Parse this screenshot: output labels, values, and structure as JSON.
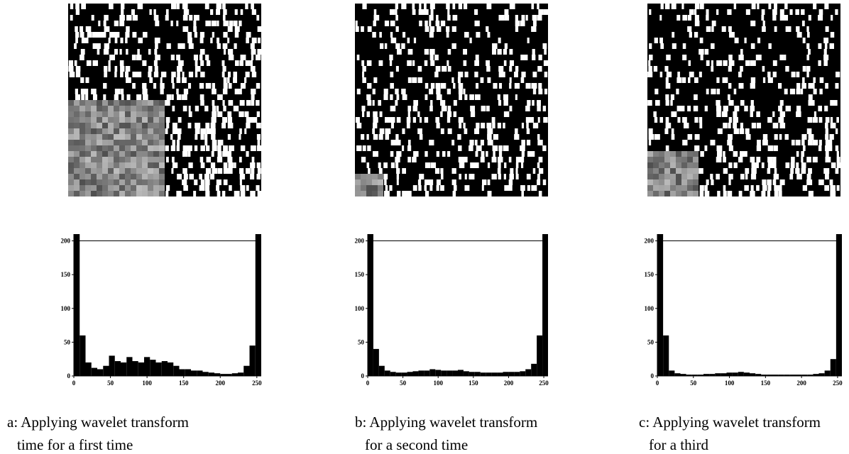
{
  "chart_data": [
    {
      "type": "histogram",
      "bins": [
        0,
        8,
        16,
        24,
        32,
        40,
        48,
        56,
        64,
        72,
        80,
        88,
        96,
        104,
        112,
        120,
        128,
        136,
        144,
        152,
        160,
        168,
        176,
        184,
        192,
        200,
        208,
        216,
        224,
        232,
        240,
        248,
        256
      ],
      "values": [
        210,
        60,
        20,
        12,
        10,
        15,
        30,
        22,
        20,
        28,
        22,
        20,
        28,
        24,
        20,
        22,
        20,
        15,
        10,
        10,
        8,
        8,
        6,
        5,
        4,
        3,
        3,
        4,
        5,
        15,
        45,
        210
      ],
      "color": "#000000",
      "xlim": [
        0,
        256
      ],
      "ylim": [
        0,
        210
      ],
      "xticks": [
        0,
        50,
        100,
        150,
        200,
        250
      ],
      "yticks": [
        0,
        50,
        100,
        150,
        200
      ],
      "hline": 200,
      "caption": [
        "a: Applying wavelet transform",
        "time for a first time"
      ]
    },
    {
      "type": "histogram",
      "bins": [
        0,
        8,
        16,
        24,
        32,
        40,
        48,
        56,
        64,
        72,
        80,
        88,
        96,
        104,
        112,
        120,
        128,
        136,
        144,
        152,
        160,
        168,
        176,
        184,
        192,
        200,
        208,
        216,
        224,
        232,
        240,
        248,
        256
      ],
      "values": [
        210,
        40,
        15,
        8,
        6,
        5,
        5,
        6,
        7,
        8,
        8,
        10,
        9,
        8,
        8,
        8,
        9,
        7,
        6,
        6,
        5,
        5,
        5,
        5,
        6,
        6,
        6,
        7,
        10,
        18,
        60,
        210
      ],
      "color": "#000000",
      "xlim": [
        0,
        256
      ],
      "ylim": [
        0,
        210
      ],
      "xticks": [
        0,
        50,
        100,
        150,
        200,
        250
      ],
      "yticks": [
        0,
        50,
        100,
        150,
        200
      ],
      "hline": 200,
      "caption": [
        "b: Applying wavelet transform",
        "for a second time"
      ]
    },
    {
      "type": "histogram",
      "bins": [
        0,
        8,
        16,
        24,
        32,
        40,
        48,
        56,
        64,
        72,
        80,
        88,
        96,
        104,
        112,
        120,
        128,
        136,
        144,
        152,
        160,
        168,
        176,
        184,
        192,
        200,
        208,
        216,
        224,
        232,
        240,
        248,
        256
      ],
      "values": [
        210,
        60,
        8,
        4,
        3,
        2,
        2,
        2,
        3,
        3,
        4,
        4,
        5,
        5,
        6,
        5,
        4,
        3,
        2,
        2,
        2,
        2,
        2,
        2,
        2,
        2,
        2,
        3,
        4,
        8,
        25,
        210
      ],
      "color": "#000000",
      "xlim": [
        0,
        256
      ],
      "ylim": [
        0,
        210
      ],
      "xticks": [
        0,
        50,
        100,
        150,
        200,
        250
      ],
      "yticks": [
        0,
        50,
        100,
        150,
        200
      ],
      "hline": 200,
      "caption": [
        "c: Applying wavelet transform",
        "for a third"
      ]
    }
  ]
}
